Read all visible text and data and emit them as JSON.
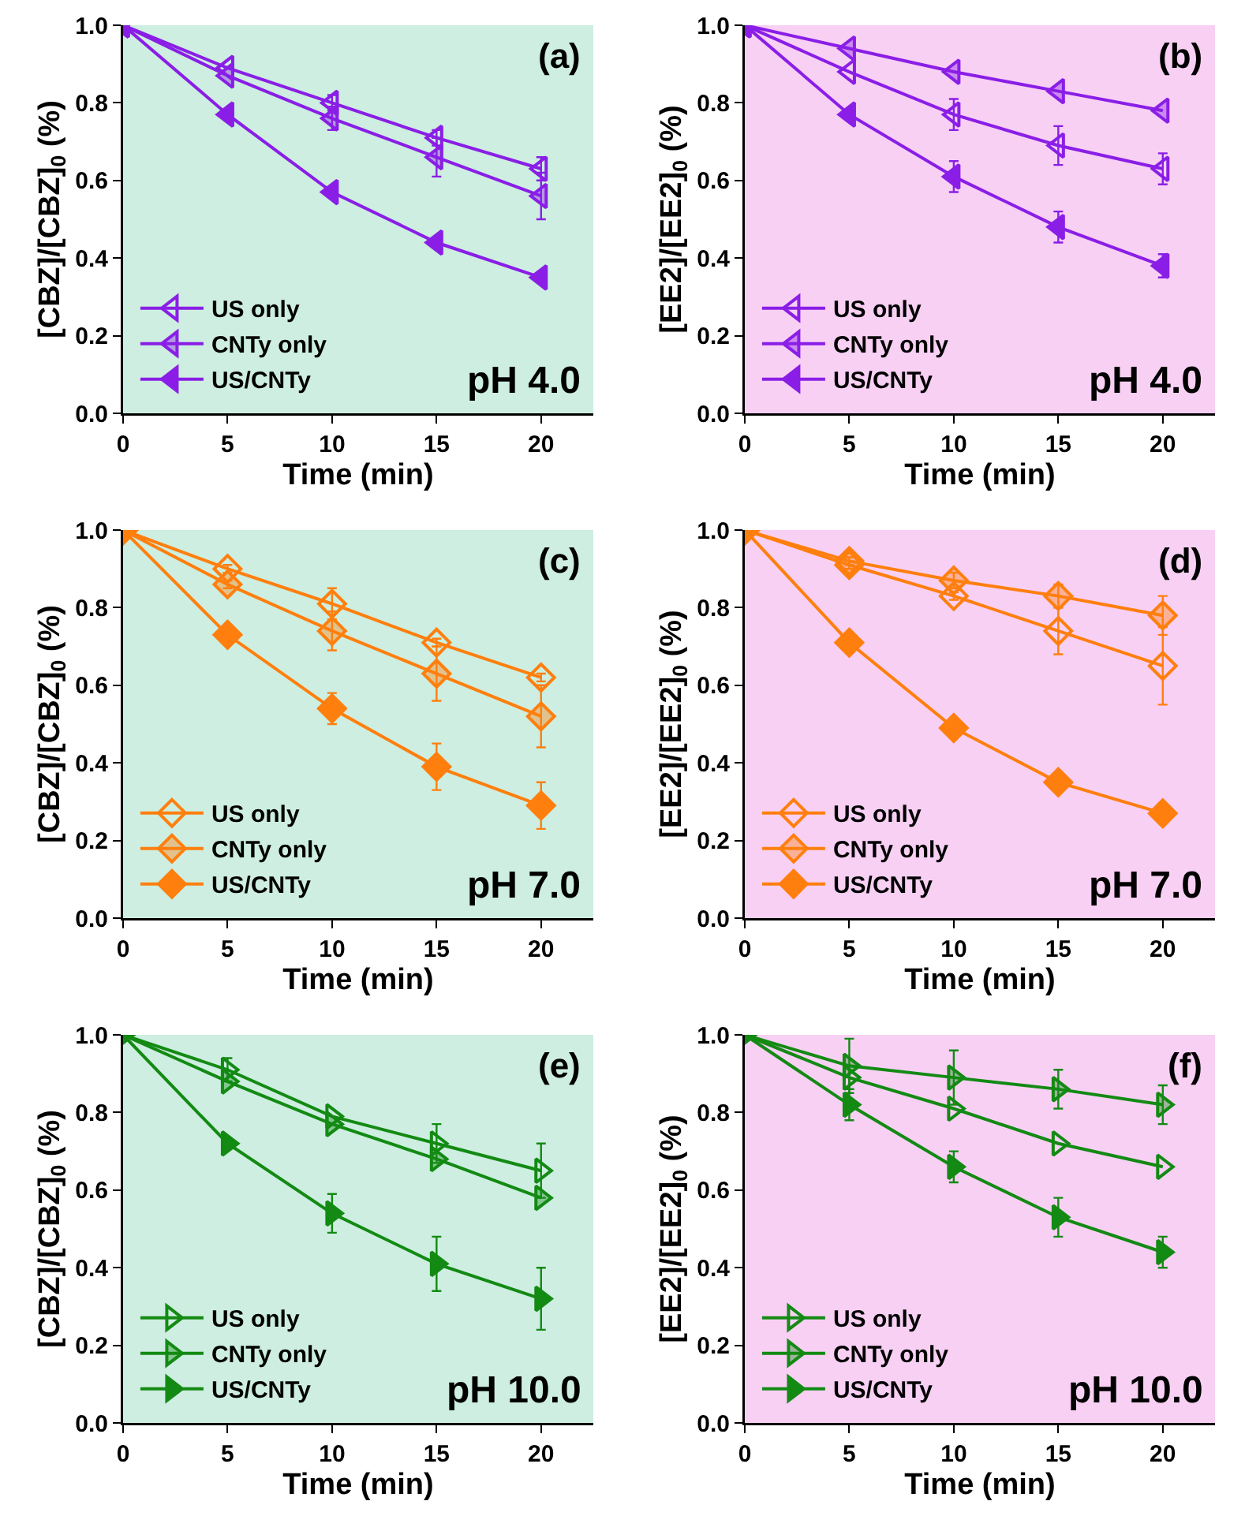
{
  "chart_data": [
    {
      "type": "line",
      "xlabel": "Time (min)",
      "ylabel": "[CBZ]/[CBZ]$_{0}$ (%)",
      "annotations": [
        "(a)",
        "pH 4.0"
      ],
      "x": [
        0,
        5,
        10,
        15,
        20
      ],
      "xlim": [
        0,
        22.5
      ],
      "xticks": [
        0,
        5,
        10,
        15,
        20
      ],
      "ylim": [
        0,
        1
      ],
      "yticks": [
        {
          "value": 0,
          "label": "0.0"
        },
        {
          "value": 0.2,
          "label": "0.2"
        },
        {
          "value": 0.4,
          "label": "0.4"
        },
        {
          "value": 0.6,
          "label": "0.6"
        },
        {
          "value": 0.8,
          "label": "0.8"
        },
        {
          "value": 1,
          "label": "1.0"
        }
      ],
      "marker": "triangle",
      "legend": "bottom left",
      "grid": false,
      "series": [
        {
          "name": "US only",
          "color": "#8a1ee6",
          "values": [
            1,
            0.89,
            0.8,
            0.71,
            0.63
          ],
          "errors": [
            null,
            null,
            0.02,
            0.02,
            0.03
          ]
        },
        {
          "name": "CNTy only",
          "color": "#8a1ee6",
          "values": [
            1,
            0.87,
            0.76,
            0.66,
            0.56
          ],
          "errors": [
            null,
            null,
            0.03,
            0.05,
            0.06
          ]
        },
        {
          "name": "US/CNTy",
          "color": "#8a1ee6",
          "values": [
            1,
            0.77,
            0.57,
            0.44,
            0.35
          ]
        }
      ]
    },
    {
      "type": "line",
      "xlabel": "Time (min)",
      "ylabel": "[EE2]/[EE2]$_{0}$ (%)",
      "annotations": [
        "(b)",
        "pH 4.0"
      ],
      "x": [
        0,
        5,
        10,
        15,
        20
      ],
      "xlim": [
        0,
        22.5
      ],
      "xticks": [
        0,
        5,
        10,
        15,
        20
      ],
      "ylim": [
        0,
        1
      ],
      "yticks": [
        {
          "value": 0,
          "label": "0.0"
        },
        {
          "value": 0.2,
          "label": "0.2"
        },
        {
          "value": 0.4,
          "label": "0.4"
        },
        {
          "value": 0.6,
          "label": "0.6"
        },
        {
          "value": 0.8,
          "label": "0.8"
        },
        {
          "value": 1,
          "label": "1.0"
        }
      ],
      "marker": "triangle",
      "legend": "bottom left",
      "grid": false,
      "series": [
        {
          "name": "US only",
          "color": "#8a1ee6",
          "values": [
            1,
            0.88,
            0.77,
            0.69,
            0.63
          ],
          "errors": [
            null,
            null,
            0.04,
            0.05,
            0.04
          ]
        },
        {
          "name": "CNTy only",
          "color": "#8a1ee6",
          "values": [
            1,
            0.94,
            0.88,
            0.83,
            0.78
          ]
        },
        {
          "name": "US/CNTy",
          "color": "#8a1ee6",
          "values": [
            1,
            0.77,
            0.61,
            0.48,
            0.38
          ],
          "errors": [
            null,
            null,
            0.04,
            0.04,
            0.03
          ]
        }
      ]
    },
    {
      "type": "line",
      "xlabel": "Time (min)",
      "ylabel": "[CBZ]/[CBZ]$_{0}$ (%)",
      "annotations": [
        "(c)",
        "pH 7.0"
      ],
      "x": [
        0,
        5,
        10,
        15,
        20
      ],
      "xlim": [
        0,
        22.5
      ],
      "xticks": [
        0,
        5,
        10,
        15,
        20
      ],
      "ylim": [
        0,
        1
      ],
      "yticks": [
        {
          "value": 0,
          "label": "0.0"
        },
        {
          "value": 0.2,
          "label": "0.2"
        },
        {
          "value": 0.4,
          "label": "0.4"
        },
        {
          "value": 0.6,
          "label": "0.6"
        },
        {
          "value": 0.8,
          "label": "0.8"
        },
        {
          "value": 1,
          "label": "1.0"
        }
      ],
      "marker": "diamond",
      "legend": "bottom left",
      "grid": false,
      "series": [
        {
          "name": "US only",
          "color": "#ff7f0e",
          "values": [
            1,
            0.9,
            0.81,
            0.71,
            0.62
          ],
          "errors": [
            null,
            0.01,
            0.04,
            0.01,
            0.01
          ]
        },
        {
          "name": "CNTy only",
          "color": "#ff7f0e",
          "values": [
            1,
            0.86,
            0.74,
            0.63,
            0.52
          ],
          "errors": [
            null,
            0.01,
            0.05,
            0.07,
            0.08
          ]
        },
        {
          "name": "US/CNTy",
          "color": "#ff7f0e",
          "values": [
            1,
            0.73,
            0.54,
            0.39,
            0.29
          ],
          "errors": [
            null,
            null,
            0.04,
            0.06,
            0.06
          ]
        }
      ]
    },
    {
      "type": "line",
      "xlabel": "Time (min)",
      "ylabel": "[EE2]/[EE2]$_{0}$ (%)",
      "annotations": [
        "(d)",
        "pH 7.0"
      ],
      "x": [
        0,
        5,
        10,
        15,
        20
      ],
      "xlim": [
        0,
        22.5
      ],
      "xticks": [
        0,
        5,
        10,
        15,
        20
      ],
      "ylim": [
        0,
        1
      ],
      "yticks": [
        {
          "value": 0,
          "label": "0.0"
        },
        {
          "value": 0.2,
          "label": "0.2"
        },
        {
          "value": 0.4,
          "label": "0.4"
        },
        {
          "value": 0.6,
          "label": "0.6"
        },
        {
          "value": 0.8,
          "label": "0.8"
        },
        {
          "value": 1,
          "label": "1.0"
        }
      ],
      "marker": "diamond",
      "legend": "bottom left",
      "grid": false,
      "series": [
        {
          "name": "US only",
          "color": "#ff7f0e",
          "values": [
            1,
            0.91,
            0.83,
            0.74,
            0.65
          ],
          "errors": [
            null,
            0.01,
            0.01,
            0.06,
            0.1
          ]
        },
        {
          "name": "CNTy only",
          "color": "#ff7f0e",
          "values": [
            1,
            0.92,
            0.87,
            0.83,
            0.78
          ],
          "errors": [
            null,
            0.01,
            0.02,
            0.03,
            0.05
          ]
        },
        {
          "name": "US/CNTy",
          "color": "#ff7f0e",
          "values": [
            1,
            0.71,
            0.49,
            0.35,
            0.27
          ]
        }
      ]
    },
    {
      "type": "line",
      "xlabel": "Time (min)",
      "ylabel": "[CBZ]/[CBZ]$_{0}$ (%)",
      "annotations": [
        "(e)",
        "pH 10.0"
      ],
      "x": [
        0,
        5,
        10,
        15,
        20
      ],
      "xlim": [
        0,
        22.5
      ],
      "xticks": [
        0,
        5,
        10,
        15,
        20
      ],
      "ylim": [
        0,
        1
      ],
      "yticks": [
        {
          "value": 0,
          "label": "0.0"
        },
        {
          "value": 0.2,
          "label": "0.2"
        },
        {
          "value": 0.4,
          "label": "0.4"
        },
        {
          "value": 0.6,
          "label": "0.6"
        },
        {
          "value": 0.8,
          "label": "0.8"
        },
        {
          "value": 1,
          "label": "1.0"
        }
      ],
      "marker": "triangle",
      "legend": "bottom left",
      "grid": false,
      "series": [
        {
          "name": "US only",
          "color": "#138a13",
          "values": [
            1,
            0.91,
            0.79,
            0.72,
            0.65
          ],
          "errors": [
            null,
            0.03,
            null,
            0.05,
            0.07
          ]
        },
        {
          "name": "CNTy only",
          "color": "#138a13",
          "values": [
            1,
            0.88,
            0.77,
            0.68,
            0.58
          ]
        },
        {
          "name": "US/CNTy",
          "color": "#138a13",
          "values": [
            1,
            0.72,
            0.54,
            0.41,
            0.32
          ],
          "errors": [
            null,
            null,
            0.05,
            0.07,
            0.08
          ]
        }
      ]
    },
    {
      "type": "line",
      "xlabel": "Time (min)",
      "ylabel": "[EE2]/[EE2]$_{0}$ (%)",
      "annotations": [
        "(f)",
        "pH 10.0"
      ],
      "x": [
        0,
        5,
        10,
        15,
        20
      ],
      "xlim": [
        0,
        22.5
      ],
      "xticks": [
        0,
        5,
        10,
        15,
        20
      ],
      "ylim": [
        0,
        1
      ],
      "yticks": [
        {
          "value": 0,
          "label": "0.0"
        },
        {
          "value": 0.2,
          "label": "0.2"
        },
        {
          "value": 0.4,
          "label": "0.4"
        },
        {
          "value": 0.6,
          "label": "0.6"
        },
        {
          "value": 0.8,
          "label": "0.8"
        },
        {
          "value": 1,
          "label": "1.0"
        }
      ],
      "marker": "triangle",
      "legend": "bottom left",
      "grid": false,
      "series": [
        {
          "name": "US only",
          "color": "#138a13",
          "values": [
            1,
            0.89,
            0.81,
            0.72,
            0.66
          ],
          "errors": [
            null,
            0.03,
            null,
            null,
            null
          ]
        },
        {
          "name": "CNTy only",
          "color": "#138a13",
          "values": [
            1,
            0.92,
            0.89,
            0.86,
            0.82
          ],
          "errors": [
            null,
            0.07,
            0.07,
            0.05,
            0.05
          ]
        },
        {
          "name": "US/CNTy",
          "color": "#138a13",
          "values": [
            1,
            0.82,
            0.66,
            0.53,
            0.44
          ],
          "errors": [
            null,
            0.04,
            0.04,
            0.05,
            0.04
          ]
        }
      ]
    }
  ]
}
